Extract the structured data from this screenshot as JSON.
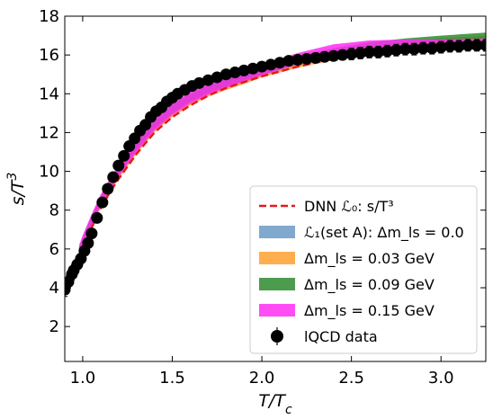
{
  "chart_data": {
    "type": "line",
    "xlabel": "T/T_c",
    "ylabel": "s/T^3",
    "xlim": [
      0.9,
      3.25
    ],
    "ylim": [
      0.2,
      18
    ],
    "x_ticks": [
      1.0,
      1.5,
      2.0,
      2.5,
      3.0
    ],
    "x_tick_labels": [
      "1.0",
      "1.5",
      "2.0",
      "2.5",
      "3.0"
    ],
    "y_ticks": [
      2,
      4,
      6,
      8,
      10,
      12,
      14,
      16,
      18
    ],
    "y_tick_labels": [
      "2",
      "4",
      "6",
      "8",
      "10",
      "12",
      "14",
      "16",
      "18"
    ],
    "grid": false,
    "legend_position": "lower-right",
    "legend": [
      {
        "label": "DNN ℒ₀: s/T³",
        "kind": "dashed-line",
        "color": "#e41a1c"
      },
      {
        "label": "ℒ₁(set A): Δm_ls = 0.0",
        "kind": "band",
        "color": "#6a9ac4"
      },
      {
        "label": "Δm_ls = 0.03 GeV",
        "kind": "band",
        "color": "#ffa030"
      },
      {
        "label": "Δm_ls = 0.09 GeV",
        "kind": "band",
        "color": "#2e8b2e"
      },
      {
        "label": "Δm_ls = 0.15 GeV",
        "kind": "band",
        "color": "#ff2df2"
      },
      {
        "label": "lQCD data",
        "kind": "errorbar",
        "color": "#000000"
      }
    ],
    "series": [
      {
        "kind": "band",
        "color": "#6a9ac4",
        "x": [
          0.98,
          1.0,
          1.05,
          1.1,
          1.15,
          1.2,
          1.3,
          1.4,
          1.5,
          1.6,
          1.7,
          1.8,
          1.9,
          2.0,
          2.2,
          2.4,
          2.6,
          2.8,
          3.0,
          3.25
        ],
        "lo": [
          5.6,
          6.1,
          7.2,
          8.2,
          9.0,
          9.7,
          11.0,
          12.1,
          12.9,
          13.5,
          13.95,
          14.3,
          14.6,
          14.9,
          15.4,
          15.8,
          16.1,
          16.3,
          16.45,
          16.55
        ],
        "hi": [
          6.0,
          6.5,
          7.6,
          8.6,
          9.4,
          10.1,
          11.4,
          12.5,
          13.3,
          13.9,
          14.35,
          14.7,
          15.0,
          15.3,
          15.8,
          16.2,
          16.5,
          16.7,
          16.85,
          16.95
        ]
      },
      {
        "kind": "band",
        "color": "#ffa030",
        "x": [
          0.98,
          1.0,
          1.05,
          1.1,
          1.15,
          1.2,
          1.3,
          1.4,
          1.5,
          1.6,
          1.7,
          1.8,
          1.9,
          2.0,
          2.2,
          2.4,
          2.6,
          2.8,
          3.0,
          3.25
        ],
        "lo": [
          5.5,
          6.0,
          7.1,
          8.1,
          8.9,
          9.6,
          10.9,
          12.0,
          12.8,
          13.4,
          13.85,
          14.2,
          14.5,
          14.85,
          15.35,
          15.75,
          16.05,
          16.25,
          16.45,
          16.6
        ],
        "hi": [
          5.9,
          6.4,
          7.5,
          8.5,
          9.3,
          10.0,
          11.3,
          12.4,
          13.2,
          13.8,
          14.25,
          14.6,
          14.9,
          15.25,
          15.75,
          16.15,
          16.45,
          16.65,
          16.85,
          17.0
        ]
      },
      {
        "kind": "band",
        "color": "#2e8b2e",
        "x": [
          0.98,
          1.0,
          1.05,
          1.1,
          1.15,
          1.2,
          1.3,
          1.4,
          1.5,
          1.6,
          1.7,
          1.8,
          1.9,
          2.0,
          2.2,
          2.4,
          2.6,
          2.8,
          3.0,
          3.25
        ],
        "lo": [
          5.7,
          6.2,
          7.3,
          8.3,
          9.1,
          9.8,
          11.1,
          12.2,
          13.0,
          13.6,
          14.05,
          14.4,
          14.7,
          15.0,
          15.5,
          15.9,
          16.2,
          16.4,
          16.6,
          16.75
        ],
        "hi": [
          6.1,
          6.6,
          7.7,
          8.7,
          9.5,
          10.2,
          11.5,
          12.6,
          13.5,
          14.0,
          14.45,
          14.8,
          15.1,
          15.4,
          15.95,
          16.35,
          16.65,
          16.85,
          17.0,
          17.15
        ]
      },
      {
        "kind": "band",
        "color": "#ff2df2",
        "x": [
          0.98,
          1.0,
          1.05,
          1.1,
          1.15,
          1.2,
          1.3,
          1.4,
          1.5,
          1.6,
          1.7,
          1.8,
          1.9,
          2.0,
          2.2,
          2.4,
          2.6,
          2.8,
          3.0,
          3.25
        ],
        "lo": [
          5.6,
          6.1,
          7.2,
          8.2,
          9.0,
          9.7,
          11.0,
          12.1,
          12.9,
          13.5,
          13.95,
          14.3,
          14.6,
          14.95,
          15.5,
          15.95,
          16.25,
          16.35,
          16.4,
          16.45
        ],
        "hi": [
          6.2,
          6.7,
          7.8,
          8.8,
          9.6,
          10.3,
          11.6,
          12.7,
          13.5,
          14.1,
          14.55,
          14.9,
          15.2,
          15.5,
          16.1,
          16.55,
          16.75,
          16.8,
          16.8,
          16.85
        ]
      },
      {
        "kind": "dashed-line",
        "color": "#e41a1c",
        "x": [
          0.98,
          1.0,
          1.05,
          1.1,
          1.15,
          1.2,
          1.3,
          1.4,
          1.5,
          1.6,
          1.7,
          1.8,
          1.9,
          2.0,
          2.2,
          2.4,
          2.6,
          2.8,
          3.0,
          3.25
        ],
        "y": [
          5.5,
          6.0,
          7.1,
          8.1,
          8.9,
          9.6,
          10.9,
          12.0,
          12.8,
          13.4,
          13.9,
          14.3,
          14.6,
          14.9,
          15.4,
          15.8,
          16.1,
          16.3,
          16.5,
          16.6
        ]
      },
      {
        "kind": "errorbar",
        "color": "#000000",
        "x": [
          0.9,
          0.92,
          0.94,
          0.95,
          0.97,
          0.99,
          1.01,
          1.03,
          1.05,
          1.08,
          1.11,
          1.14,
          1.17,
          1.2,
          1.23,
          1.26,
          1.29,
          1.32,
          1.35,
          1.38,
          1.41,
          1.44,
          1.47,
          1.5,
          1.53,
          1.57,
          1.61,
          1.65,
          1.7,
          1.75,
          1.8,
          1.85,
          1.9,
          1.95,
          2.0,
          2.05,
          2.1,
          2.15,
          2.2,
          2.25,
          2.3,
          2.35,
          2.4,
          2.45,
          2.5,
          2.55,
          2.6,
          2.65,
          2.7,
          2.75,
          2.8,
          2.85,
          2.9,
          2.95,
          3.0,
          3.05,
          3.1,
          3.15,
          3.2,
          3.25
        ],
        "y": [
          3.9,
          4.3,
          4.7,
          4.9,
          5.2,
          5.5,
          5.9,
          6.3,
          6.8,
          7.6,
          8.4,
          9.1,
          9.7,
          10.3,
          10.8,
          11.3,
          11.7,
          12.1,
          12.4,
          12.8,
          13.1,
          13.3,
          13.6,
          13.8,
          14.0,
          14.2,
          14.4,
          14.55,
          14.7,
          14.85,
          15.0,
          15.1,
          15.2,
          15.3,
          15.4,
          15.5,
          15.6,
          15.7,
          15.75,
          15.8,
          15.85,
          15.9,
          15.95,
          16.0,
          16.05,
          16.1,
          16.15,
          16.15,
          16.2,
          16.25,
          16.3,
          16.3,
          16.35,
          16.35,
          16.4,
          16.45,
          16.45,
          16.5,
          16.5,
          16.5
        ],
        "err": [
          0.35,
          0.3,
          0.3,
          0.3,
          0.25,
          0.25,
          0.2,
          0.2,
          0.2,
          0.2,
          0.2,
          0.2,
          0.2,
          0.2,
          0.2,
          0.2,
          0.2,
          0.2,
          0.2,
          0.2,
          0.2,
          0.2,
          0.2,
          0.2,
          0.2,
          0.2,
          0.2,
          0.2,
          0.2,
          0.2,
          0.2,
          0.2,
          0.2,
          0.2,
          0.2,
          0.2,
          0.2,
          0.2,
          0.2,
          0.2,
          0.25,
          0.25,
          0.25,
          0.25,
          0.3,
          0.3,
          0.3,
          0.3,
          0.3,
          0.3,
          0.3,
          0.3,
          0.3,
          0.3,
          0.3,
          0.3,
          0.3,
          0.3,
          0.3,
          0.3
        ]
      }
    ]
  }
}
